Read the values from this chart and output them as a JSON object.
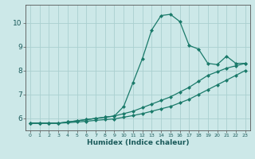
{
  "xlabel": "Humidex (Indice chaleur)",
  "ylabel": "",
  "x": [
    0,
    1,
    2,
    3,
    4,
    5,
    6,
    7,
    8,
    9,
    10,
    11,
    12,
    13,
    14,
    15,
    16,
    17,
    18,
    19,
    20,
    21,
    22,
    23
  ],
  "line1": [
    5.8,
    5.8,
    5.8,
    5.8,
    5.85,
    5.9,
    5.95,
    6.0,
    6.05,
    6.1,
    6.5,
    7.5,
    8.5,
    9.7,
    10.3,
    10.35,
    10.05,
    9.05,
    8.9,
    8.3,
    8.25,
    8.6,
    8.3,
    8.3
  ],
  "line2": [
    5.8,
    5.8,
    5.8,
    5.8,
    5.85,
    5.9,
    5.95,
    6.0,
    6.05,
    6.1,
    6.2,
    6.3,
    6.45,
    6.6,
    6.75,
    6.9,
    7.1,
    7.3,
    7.55,
    7.8,
    7.95,
    8.1,
    8.2,
    8.3
  ],
  "line3": [
    5.8,
    5.8,
    5.8,
    5.8,
    5.82,
    5.85,
    5.88,
    5.92,
    5.95,
    5.98,
    6.05,
    6.12,
    6.2,
    6.3,
    6.4,
    6.5,
    6.65,
    6.8,
    7.0,
    7.2,
    7.4,
    7.6,
    7.8,
    8.0
  ],
  "line_color": "#1a7a6a",
  "bg_color": "#cce8e8",
  "grid_color": "#aad0d0",
  "xlim": [
    -0.5,
    23.5
  ],
  "ylim": [
    5.5,
    10.75
  ],
  "yticks": [
    6,
    7,
    8,
    9,
    10
  ],
  "xticks": [
    0,
    1,
    2,
    3,
    4,
    5,
    6,
    7,
    8,
    9,
    10,
    11,
    12,
    13,
    14,
    15,
    16,
    17,
    18,
    19,
    20,
    21,
    22,
    23
  ],
  "marker": "D",
  "markersize": 2,
  "linewidth": 0.9,
  "xlabel_fontsize": 6.5,
  "xtick_fontsize": 4.5,
  "ytick_fontsize": 6.5
}
